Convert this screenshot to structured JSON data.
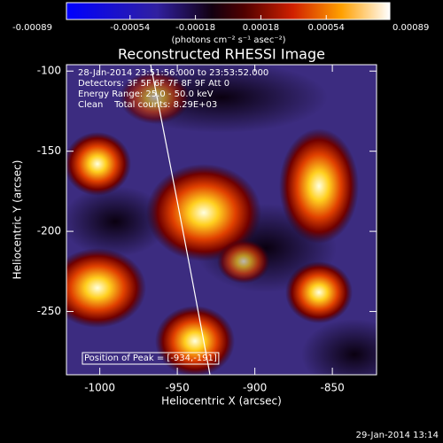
{
  "chart_data": {
    "type": "image",
    "title": "Reconstructed RHESSI Image",
    "x_label": "Heliocentric X (arcsec)",
    "y_label": "Heliocentric Y (arcsec)",
    "xlim": [
      -1021.5,
      -821.5
    ],
    "ylim": [
      -289.5,
      -96
    ],
    "xticks": [
      -1000,
      -950,
      -900,
      -850
    ],
    "yticks": [
      -250,
      -200,
      -150,
      -100
    ],
    "colorbar": {
      "lim": [
        -0.00089,
        0.00089
      ],
      "ticks": [
        -0.00089,
        -0.00054,
        -0.00018,
        0.00018,
        0.00054,
        0.00089
      ],
      "label": "(photons cm⁻² s⁻¹ asec⁻²)"
    },
    "annotations": [
      "28-Jan-2014 23:51:56.000 to 23:53:52.000",
      "Detectors: 3F 5F 6F 7F 8F 9F Att 0",
      "Energy Range: 25.0 - 50.0 keV",
      "Clean    Total counts: 8.29E+03"
    ],
    "peak_label": "Position of Peak = [-934,-191]",
    "footer": "29-Jan-2014 13:14"
  }
}
